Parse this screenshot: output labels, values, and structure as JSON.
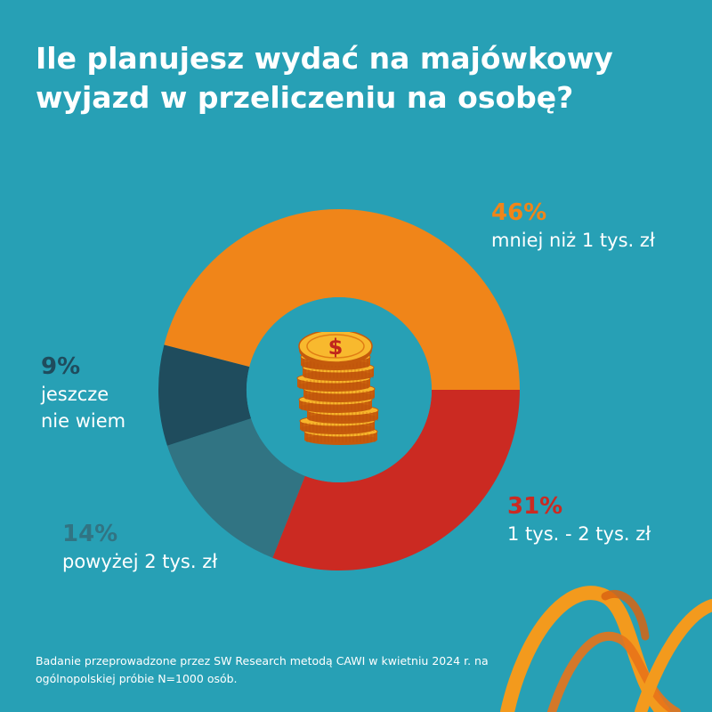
{
  "title": "Ile planujesz wydać na majówkowy wyjazd w przeliczeniu na osobę?",
  "footnote": "Badanie przeprowadzone przez SW Research metodą CAWI w kwietniu 2024 r. na ogólnopolskiej próbie N=1000 osób.",
  "colors": {
    "background": "#27a0b5",
    "hole": "#27a0b5",
    "text": "#ffffff"
  },
  "center_icon": "stacked-coins-dollar-icon",
  "decoration": "orange-ribbon-logo",
  "chart_data": {
    "type": "pie",
    "variant": "donut",
    "title": "Ile planujesz wydać na majówkowy wyjazd w przeliczeniu na osobę?",
    "slices": [
      {
        "label": "mniej niż 1 tys. zł",
        "value": 46,
        "value_label": "46%",
        "color": "#f08519"
      },
      {
        "label": "1 tys. - 2 tys. zł",
        "value": 31,
        "value_label": "31%",
        "color": "#cb2a22"
      },
      {
        "label": "powyżej 2 tys. zł",
        "value": 14,
        "value_label": "14%",
        "color": "#317483"
      },
      {
        "label": "jeszcze\nnie wiem",
        "value": 9,
        "value_label": "9%",
        "color": "#1f4c5d"
      }
    ]
  }
}
